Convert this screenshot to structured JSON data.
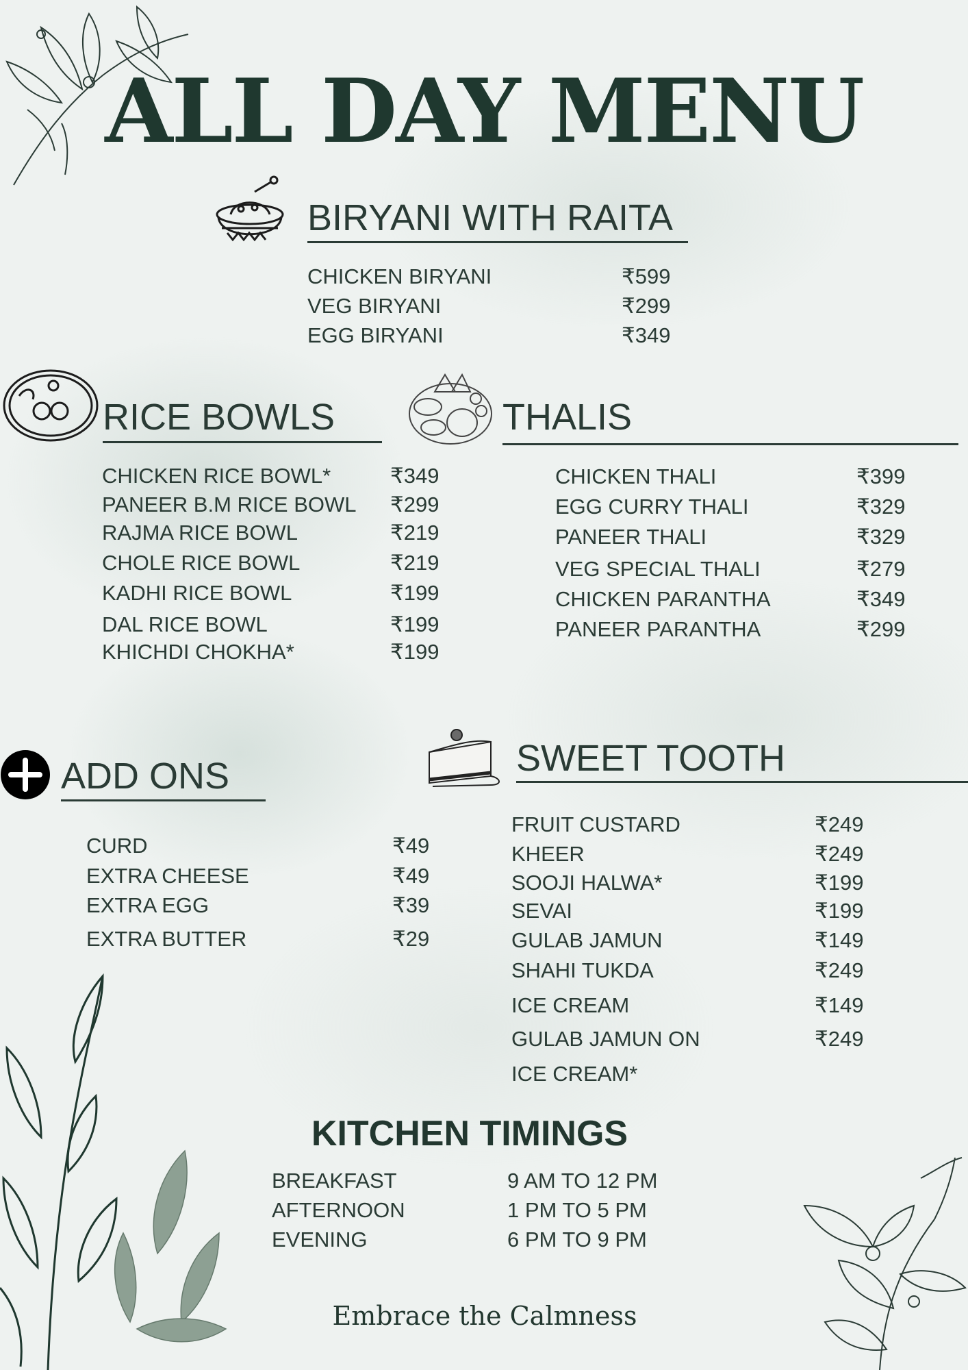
{
  "title": "ALL DAY MENU",
  "sections": {
    "biryani": {
      "heading": "BIRYANI WITH RAITA",
      "icon": "biryani-pot-icon",
      "items": [
        {
          "name": "CHICKEN BIRYANI",
          "price": "₹599"
        },
        {
          "name": "VEG BIRYANI",
          "price": "₹299"
        },
        {
          "name": "EGG BIRYANI",
          "price": "₹349"
        }
      ]
    },
    "rice_bowls": {
      "heading": "RICE BOWLS",
      "icon": "rice-bowl-icon",
      "items": [
        {
          "name": "CHICKEN RICE BOWL*",
          "price": "₹349"
        },
        {
          "name": "PANEER B.M RICE BOWL",
          "price": "₹299"
        },
        {
          "name": "RAJMA RICE BOWL",
          "price": "₹219"
        },
        {
          "name": "CHOLE RICE BOWL",
          "price": "₹219"
        },
        {
          "name": "KADHI RICE BOWL",
          "price": "₹199"
        },
        {
          "name": "DAL RICE BOWL",
          "price": "₹199"
        },
        {
          "name": "KHICHDI CHOKHA*",
          "price": "₹199"
        }
      ]
    },
    "thalis": {
      "heading": "THALIS",
      "icon": "thali-platter-icon",
      "items": [
        {
          "name": "CHICKEN THALI",
          "price": "₹399"
        },
        {
          "name": "EGG CURRY THALI",
          "price": "₹329"
        },
        {
          "name": "PANEER THALI",
          "price": "₹329"
        },
        {
          "name": "VEG SPECIAL THALI",
          "price": "₹279"
        },
        {
          "name": "CHICKEN PARANTHA",
          "price": "₹349"
        },
        {
          "name": "PANEER PARANTHA",
          "price": "₹299"
        }
      ]
    },
    "add_ons": {
      "heading": "ADD ONS",
      "icon": "plus-circle-icon",
      "items": [
        {
          "name": "CURD",
          "price": "₹49"
        },
        {
          "name": "EXTRA CHEESE",
          "price": "₹49"
        },
        {
          "name": "EXTRA EGG",
          "price": "₹39"
        },
        {
          "name": "EXTRA BUTTER",
          "price": "₹29"
        }
      ]
    },
    "sweet_tooth": {
      "heading": "SWEET TOOTH",
      "icon": "cake-slice-icon",
      "items": [
        {
          "name": "FRUIT CUSTARD",
          "price": "₹249"
        },
        {
          "name": "KHEER",
          "price": "₹249"
        },
        {
          "name": "SOOJI HALWA*",
          "price": "₹199"
        },
        {
          "name": "SEVAI",
          "price": "₹199"
        },
        {
          "name": "GULAB JAMUN",
          "price": "₹149"
        },
        {
          "name": "SHAHI TUKDA",
          "price": "₹249"
        },
        {
          "name": "ICE CREAM",
          "price": "₹149"
        },
        {
          "name": "GULAB JAMUN ON",
          "price": "₹249"
        },
        {
          "name": "ICE CREAM*",
          "price": ""
        }
      ]
    }
  },
  "kitchen_timings": {
    "heading": "KITCHEN TIMINGS",
    "rows": [
      {
        "label": "BREAKFAST",
        "time": "9 AM TO 12 PM"
      },
      {
        "label": "AFTERNOON",
        "time": "1 PM TO 5 PM"
      },
      {
        "label": "EVENING",
        "time": "6 PM TO 9 PM"
      }
    ]
  },
  "footer": "Embrace the Calmness",
  "colors": {
    "text": "#2a3b35",
    "background": "#eef2f0"
  }
}
